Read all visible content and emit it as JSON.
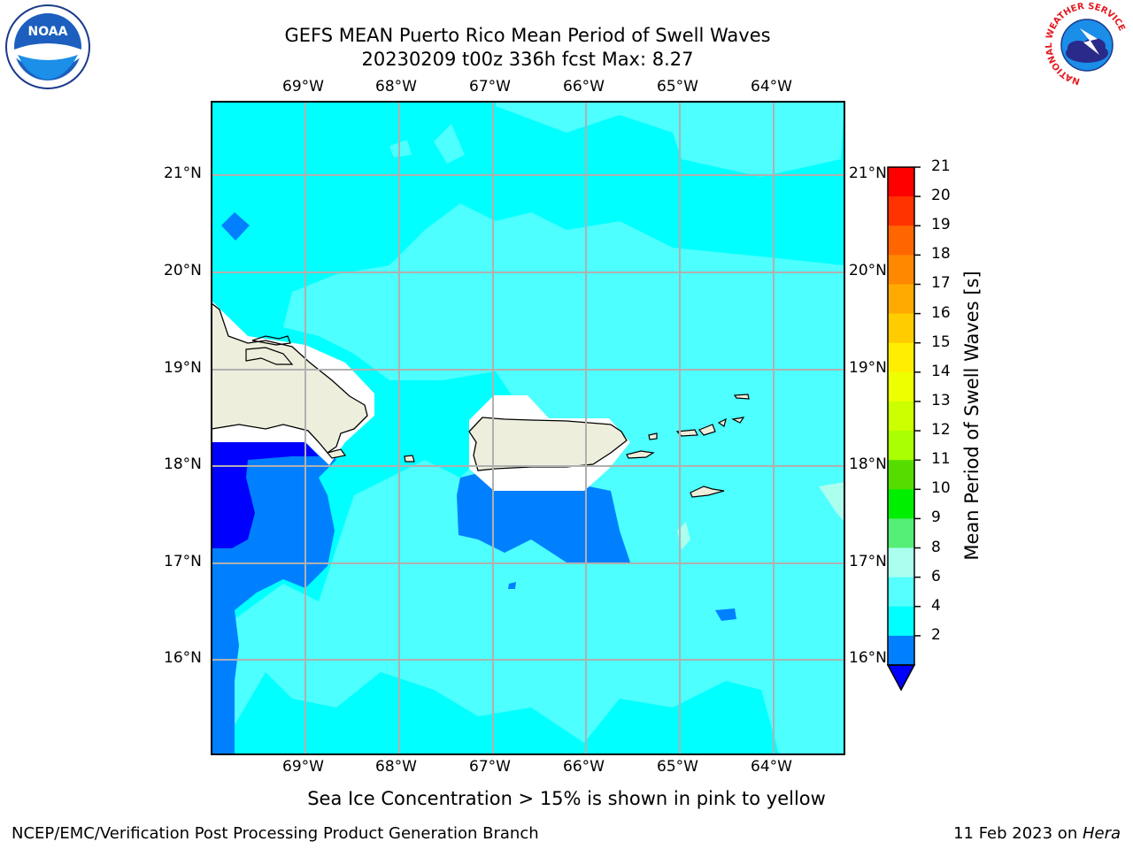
{
  "title": {
    "line1": "GEFS MEAN Puerto Rico Mean Period of Swell Waves",
    "line2": "20230209 t00z 336h fcst   Max: 8.27"
  },
  "logos": {
    "left": {
      "icon": "noaa-logo",
      "text": "NOAA"
    },
    "right": {
      "icon": "nws-logo",
      "text": "NATIONAL WEATHER SERVICE"
    }
  },
  "map": {
    "lon_labels": [
      "69°W",
      "68°W",
      "67°W",
      "66°W",
      "65°W",
      "64°W"
    ],
    "lat_labels": [
      "21°N",
      "20°N",
      "19°N",
      "18°N",
      "17°N",
      "16°N"
    ],
    "region": "Puerto Rico",
    "colors": {
      "ocean_cyan": "#00ffff",
      "ocean_light_cyan": "#4dffff",
      "ocean_blue": "#0080ff",
      "ocean_deep_blue": "#0000ff",
      "land": "#eeeedd",
      "grid": "#b0b0b0"
    }
  },
  "colorbar": {
    "label": "Mean Period of Swell Waves [s]",
    "ticks": [
      "21",
      "20",
      "19",
      "18",
      "17",
      "16",
      "15",
      "14",
      "13",
      "12",
      "11",
      "10",
      "9",
      "8",
      "6",
      "4",
      "2"
    ],
    "colors": [
      "#ff0000",
      "#ff3300",
      "#ff6600",
      "#ff8800",
      "#ffaa00",
      "#ffcc00",
      "#ffee00",
      "#eeff00",
      "#ccff00",
      "#aaff00",
      "#55dd00",
      "#00ee00",
      "#55ee77",
      "#aaffee",
      "#55ffff",
      "#00ffff",
      "#0080ff"
    ],
    "under_color": "#0000ff"
  },
  "caption": "Sea Ice Concentration > 15% is shown in pink to yellow",
  "footer": {
    "left": "NCEP/EMC/Verification Post Processing Product Generation Branch",
    "right_date": "11 Feb 2023 on ",
    "right_machine": "Hera"
  }
}
